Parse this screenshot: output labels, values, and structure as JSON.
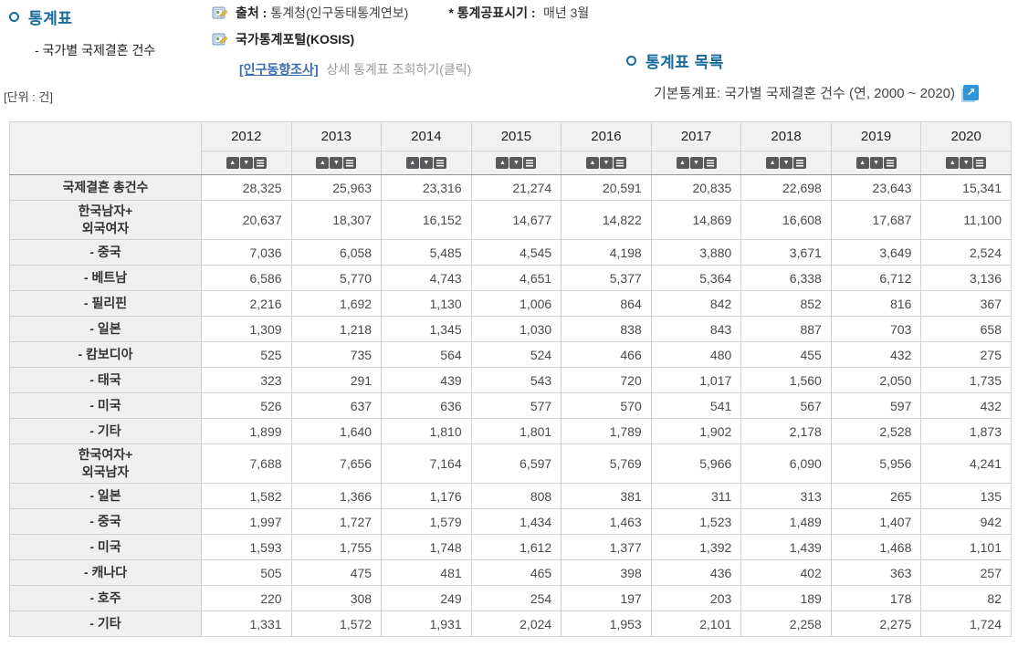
{
  "header": {
    "section_title": "통계표",
    "section_subtitle": "- 국가별 국제결혼 건수",
    "source": {
      "label": "출처 :",
      "value": "통계청(인구동태통계연보)"
    },
    "publish": {
      "label": "* 통계공표시기 :",
      "value": "매년 3월"
    },
    "portal_label": "국가통계포털(KOSIS)",
    "survey": {
      "link": "[인구동향조사]",
      "suffix": "상세 통계표 조회하기(클릭)"
    },
    "list_title": "통계표 목록",
    "list_item": "기본통계표: 국가별 국제결혼 건수 (연, 2000 ~ 2020)",
    "external_link_glyph": "↗"
  },
  "unit_label": "[단위 : 건]",
  "colors": {
    "accent_blue": "#176a9c",
    "link_blue": "#3a6daf",
    "sort_button_gray": "#58595b",
    "external_icon_blue": "#3094d8",
    "header_bg": "#f1f1f1",
    "label_bg": "#efefef"
  },
  "table": {
    "columns": [
      "2012",
      "2013",
      "2014",
      "2015",
      "2016",
      "2017",
      "2018",
      "2019",
      "2020"
    ],
    "sort_buttons": [
      {
        "icon_name": "sort-ascending-icon",
        "glyph": "▲",
        "menu": false
      },
      {
        "icon_name": "sort-descending-icon",
        "glyph": "▼",
        "menu": false
      },
      {
        "icon_name": "column-menu-icon",
        "glyph": "",
        "menu": true
      }
    ],
    "rows": [
      {
        "label_lines": [
          "국제결혼 총건수"
        ],
        "tall": false,
        "values": [
          "28,325",
          "25,963",
          "23,316",
          "21,274",
          "20,591",
          "20,835",
          "22,698",
          "23,643",
          "15,341"
        ]
      },
      {
        "label_lines": [
          "한국남자+",
          "외국여자"
        ],
        "tall": true,
        "values": [
          "20,637",
          "18,307",
          "16,152",
          "14,677",
          "14,822",
          "14,869",
          "16,608",
          "17,687",
          "11,100"
        ]
      },
      {
        "label_lines": [
          "- 중국"
        ],
        "tall": false,
        "values": [
          "7,036",
          "6,058",
          "5,485",
          "4,545",
          "4,198",
          "3,880",
          "3,671",
          "3,649",
          "2,524"
        ]
      },
      {
        "label_lines": [
          "- 베트남"
        ],
        "tall": false,
        "values": [
          "6,586",
          "5,770",
          "4,743",
          "4,651",
          "5,377",
          "5,364",
          "6,338",
          "6,712",
          "3,136"
        ]
      },
      {
        "label_lines": [
          "- 필리핀"
        ],
        "tall": false,
        "values": [
          "2,216",
          "1,692",
          "1,130",
          "1,006",
          "864",
          "842",
          "852",
          "816",
          "367"
        ]
      },
      {
        "label_lines": [
          "- 일본"
        ],
        "tall": false,
        "values": [
          "1,309",
          "1,218",
          "1,345",
          "1,030",
          "838",
          "843",
          "887",
          "703",
          "658"
        ]
      },
      {
        "label_lines": [
          "- 캄보디아"
        ],
        "tall": false,
        "values": [
          "525",
          "735",
          "564",
          "524",
          "466",
          "480",
          "455",
          "432",
          "275"
        ]
      },
      {
        "label_lines": [
          "- 태국"
        ],
        "tall": false,
        "values": [
          "323",
          "291",
          "439",
          "543",
          "720",
          "1,017",
          "1,560",
          "2,050",
          "1,735"
        ]
      },
      {
        "label_lines": [
          "- 미국"
        ],
        "tall": false,
        "values": [
          "526",
          "637",
          "636",
          "577",
          "570",
          "541",
          "567",
          "597",
          "432"
        ]
      },
      {
        "label_lines": [
          "- 기타"
        ],
        "tall": false,
        "values": [
          "1,899",
          "1,640",
          "1,810",
          "1,801",
          "1,789",
          "1,902",
          "2,178",
          "2,528",
          "1,873"
        ]
      },
      {
        "label_lines": [
          "한국여자+",
          "외국남자"
        ],
        "tall": true,
        "values": [
          "7,688",
          "7,656",
          "7,164",
          "6,597",
          "5,769",
          "5,966",
          "6,090",
          "5,956",
          "4,241"
        ]
      },
      {
        "label_lines": [
          "- 일본"
        ],
        "tall": false,
        "values": [
          "1,582",
          "1,366",
          "1,176",
          "808",
          "381",
          "311",
          "313",
          "265",
          "135"
        ]
      },
      {
        "label_lines": [
          "- 중국"
        ],
        "tall": false,
        "values": [
          "1,997",
          "1,727",
          "1,579",
          "1,434",
          "1,463",
          "1,523",
          "1,489",
          "1,407",
          "942"
        ]
      },
      {
        "label_lines": [
          "- 미국"
        ],
        "tall": false,
        "values": [
          "1,593",
          "1,755",
          "1,748",
          "1,612",
          "1,377",
          "1,392",
          "1,439",
          "1,468",
          "1,101"
        ]
      },
      {
        "label_lines": [
          "- 캐나다"
        ],
        "tall": false,
        "values": [
          "505",
          "475",
          "481",
          "465",
          "398",
          "436",
          "402",
          "363",
          "257"
        ]
      },
      {
        "label_lines": [
          "- 호주"
        ],
        "tall": false,
        "values": [
          "220",
          "308",
          "249",
          "254",
          "197",
          "203",
          "189",
          "178",
          "82"
        ]
      },
      {
        "label_lines": [
          "- 기타"
        ],
        "tall": false,
        "values": [
          "1,331",
          "1,572",
          "1,931",
          "2,024",
          "1,953",
          "2,101",
          "2,258",
          "2,275",
          "1,724"
        ]
      }
    ]
  }
}
